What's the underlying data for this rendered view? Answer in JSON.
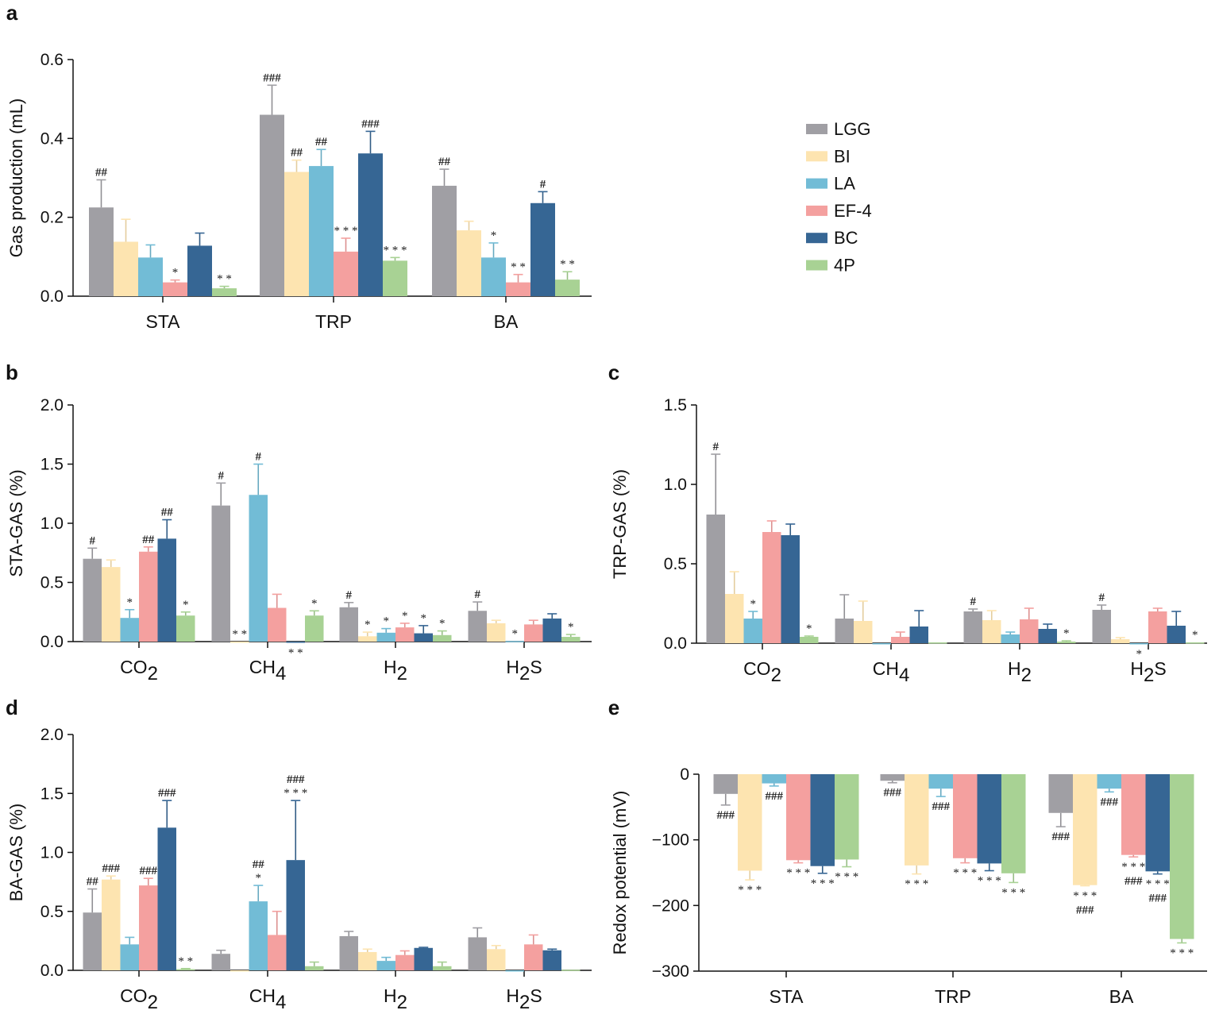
{
  "chart_data": [
    {
      "panel": "a",
      "type": "bar",
      "ylabel": "Gas production (mL)",
      "ylim": [
        0,
        0.6
      ],
      "yticks": [
        "0.0",
        "0.2",
        "0.4",
        "0.6"
      ],
      "ytick_values": [
        0,
        0.2,
        0.4,
        0.6
      ],
      "categories": [
        "STA",
        "TRP",
        "BA"
      ],
      "series": [
        {
          "name": "LGG",
          "values": [
            0.225,
            0.46,
            0.28
          ],
          "error": [
            0.07,
            0.075,
            0.042
          ],
          "annotations": [
            "##",
            "###",
            "##"
          ]
        },
        {
          "name": "BI",
          "values": [
            0.138,
            0.315,
            0.167
          ],
          "error": [
            0.057,
            0.03,
            0.023
          ],
          "annotations": [
            "",
            "##",
            ""
          ]
        },
        {
          "name": "LA",
          "values": [
            0.098,
            0.33,
            0.098
          ],
          "error": [
            0.032,
            0.042,
            0.037
          ],
          "annotations": [
            "",
            "##",
            "*"
          ]
        },
        {
          "name": "EF-4",
          "values": [
            0.035,
            0.113,
            0.035
          ],
          "error": [
            0.006,
            0.034,
            0.02
          ],
          "annotations": [
            "*",
            "***",
            "**"
          ]
        },
        {
          "name": "BC",
          "values": [
            0.128,
            0.362,
            0.236
          ],
          "error": [
            0.032,
            0.056,
            0.029
          ],
          "annotations": [
            "",
            "###",
            "#"
          ]
        },
        {
          "name": "4P",
          "values": [
            0.02,
            0.09,
            0.042
          ],
          "error": [
            0.005,
            0.008,
            0.02
          ],
          "annotations": [
            "**",
            "***",
            "**"
          ]
        }
      ]
    },
    {
      "panel": "b",
      "type": "bar",
      "ylabel": "STA-GAS (%)",
      "ylim": [
        0,
        2.0
      ],
      "yticks": [
        "0.0",
        "0.5",
        "1.0",
        "1.5",
        "2.0"
      ],
      "ytick_values": [
        0,
        0.5,
        1,
        1.5,
        2
      ],
      "categories": [
        "CO2",
        "CH4",
        "H2",
        "H2S"
      ],
      "series": [
        {
          "name": "LGG",
          "values": [
            0.7,
            1.15,
            0.29,
            0.26
          ],
          "error": [
            0.09,
            0.19,
            0.04,
            0.075
          ],
          "annotations": [
            "#",
            "#",
            "#",
            "#"
          ]
        },
        {
          "name": "BI",
          "values": [
            0.63,
            0,
            0.045,
            0.155
          ],
          "error": [
            0.06,
            0,
            0.035,
            0.025
          ],
          "annotations": [
            "",
            "**",
            "*",
            ""
          ]
        },
        {
          "name": "LA",
          "values": [
            0.2,
            1.24,
            0.075,
            0.005
          ],
          "error": [
            0.07,
            0.26,
            0.035,
            0
          ],
          "annotations": [
            "*",
            "#",
            "*",
            "*"
          ]
        },
        {
          "name": "EF-4",
          "values": [
            0.76,
            0.285,
            0.12,
            0.145
          ],
          "error": [
            0.04,
            0.115,
            0.035,
            0.035
          ],
          "annotations": [
            "##",
            "",
            "*",
            ""
          ]
        },
        {
          "name": "BC",
          "values": [
            0.87,
            -0.01,
            0.07,
            0.195
          ],
          "error": [
            0.16,
            0,
            0.065,
            0.04
          ],
          "annotations": [
            "##",
            "**",
            "*",
            ""
          ]
        },
        {
          "name": "4P",
          "values": [
            0.22,
            0.22,
            0.055,
            0.04
          ],
          "error": [
            0.03,
            0.04,
            0.035,
            0.02
          ],
          "annotations": [
            "*",
            "*",
            "*",
            "*"
          ]
        }
      ]
    },
    {
      "panel": "c",
      "type": "bar",
      "ylabel": "TRP-GAS (%)",
      "ylim": [
        0,
        1.5
      ],
      "yticks": [
        "0.0",
        "0.5",
        "1.0",
        "1.5"
      ],
      "ytick_values": [
        0,
        0.5,
        1,
        1.5
      ],
      "categories": [
        "CO2",
        "CH4",
        "H2",
        "H2S"
      ],
      "series": [
        {
          "name": "LGG",
          "values": [
            0.81,
            0.155,
            0.2,
            0.21
          ],
          "error": [
            0.38,
            0.15,
            0.015,
            0.03
          ],
          "annotations": [
            "#",
            "",
            "#",
            "#"
          ]
        },
        {
          "name": "BI",
          "values": [
            0.31,
            0.14,
            0.145,
            0.025
          ],
          "error": [
            0.14,
            0.125,
            0.06,
            0.01
          ],
          "annotations": [
            "",
            "",
            "",
            ""
          ]
        },
        {
          "name": "LA",
          "values": [
            0.155,
            -0.005,
            0.055,
            -0.005
          ],
          "error": [
            0.045,
            0,
            0.015,
            0
          ],
          "annotations": [
            "*",
            "",
            "",
            "*"
          ]
        },
        {
          "name": "EF-4",
          "values": [
            0.7,
            0.04,
            0.15,
            0.2
          ],
          "error": [
            0.07,
            0.03,
            0.07,
            0.02
          ],
          "annotations": [
            "",
            "",
            "",
            ""
          ]
        },
        {
          "name": "BC",
          "values": [
            0.68,
            0.105,
            0.09,
            0.11
          ],
          "error": [
            0.07,
            0.1,
            0.03,
            0.09
          ],
          "annotations": [
            "",
            "",
            "",
            ""
          ]
        },
        {
          "name": "4P",
          "values": [
            0.04,
            0.005,
            0.01,
            0.005
          ],
          "error": [
            0.005,
            0,
            0.005,
            0
          ],
          "annotations": [
            "*",
            "",
            "*",
            "*"
          ]
        }
      ]
    },
    {
      "panel": "d",
      "type": "bar",
      "ylabel": "BA-GAS (%)",
      "ylim": [
        0,
        2.0
      ],
      "yticks": [
        "0.0",
        "0.5",
        "1.0",
        "1.5",
        "2.0"
      ],
      "ytick_values": [
        0,
        0.5,
        1,
        1.5,
        2
      ],
      "categories": [
        "CO2",
        "CH4",
        "H2",
        "H2S"
      ],
      "series": [
        {
          "name": "LGG",
          "values": [
            0.49,
            0.14,
            0.29,
            0.28
          ],
          "error": [
            0.2,
            0.03,
            0.04,
            0.08
          ],
          "annotations": [
            "##",
            "",
            "",
            ""
          ]
        },
        {
          "name": "BI",
          "values": [
            0.77,
            0,
            0.155,
            0.18
          ],
          "error": [
            0.03,
            0,
            0.025,
            0.03
          ],
          "annotations": [
            "###",
            "",
            "",
            ""
          ]
        },
        {
          "name": "LA",
          "values": [
            0.22,
            0.585,
            0.08,
            0
          ],
          "error": [
            0.06,
            0.135,
            0.03,
            0
          ],
          "annotations": [
            "",
            "##\n*",
            "",
            ""
          ]
        },
        {
          "name": "EF-4",
          "values": [
            0.72,
            0.3,
            0.13,
            0.22
          ],
          "error": [
            0.06,
            0.2,
            0.035,
            0.08
          ],
          "annotations": [
            "###",
            "",
            "",
            ""
          ]
        },
        {
          "name": "BC",
          "values": [
            1.21,
            0.935,
            0.19,
            0.17
          ],
          "error": [
            0.23,
            0.505,
            0.005,
            0.01
          ],
          "annotations": [
            "###",
            "###\n***",
            "",
            ""
          ]
        },
        {
          "name": "4P",
          "values": [
            0.01,
            0.035,
            0.035,
            0.005
          ],
          "error": [
            0.005,
            0.035,
            0.035,
            0
          ],
          "annotations": [
            "**",
            "",
            "",
            ""
          ]
        }
      ]
    },
    {
      "panel": "e",
      "type": "bar",
      "ylabel": "Redox potential (mV)",
      "ylim": [
        -300,
        0
      ],
      "yticks": [
        "0",
        "−100",
        "−200",
        "−300"
      ],
      "ytick_values": [
        0,
        -100,
        -200,
        -300
      ],
      "categories": [
        "STA",
        "TRP",
        "BA"
      ],
      "series": [
        {
          "name": "LGG",
          "values": [
            -30,
            -10,
            -59
          ],
          "error": [
            17,
            3,
            21
          ],
          "annotations": [
            "###",
            "###",
            "###"
          ]
        },
        {
          "name": "BI",
          "values": [
            -147,
            -139,
            -169
          ],
          "error": [
            14,
            13,
            1
          ],
          "annotations": [
            "***",
            "***",
            "***\n###"
          ]
        },
        {
          "name": "LA",
          "values": [
            -14,
            -22,
            -22
          ],
          "error": [
            4,
            12,
            5
          ],
          "annotations": [
            "###",
            "###",
            "###"
          ]
        },
        {
          "name": "EF-4",
          "values": [
            -131,
            -128,
            -123
          ],
          "error": [
            4,
            7,
            3
          ],
          "annotations": [
            "***",
            "***",
            "***\n###"
          ]
        },
        {
          "name": "BC",
          "values": [
            -140,
            -136,
            -148
          ],
          "error": [
            11,
            11,
            4
          ],
          "annotations": [
            "***",
            "***",
            "***\n###"
          ]
        },
        {
          "name": "4P",
          "values": [
            -130,
            -151,
            -251
          ],
          "error": [
            11,
            14,
            6
          ],
          "annotations": [
            "***",
            "***",
            "***"
          ]
        }
      ]
    }
  ],
  "legend": {
    "placement": "top-right",
    "items": [
      {
        "name": "LGG",
        "color": "#a09fa4"
      },
      {
        "name": "BI",
        "color": "#fde4b0"
      },
      {
        "name": "LA",
        "color": "#72bcd6"
      },
      {
        "name": "EF-4",
        "color": "#f4a09f"
      },
      {
        "name": "BC",
        "color": "#366694"
      },
      {
        "name": "4P",
        "color": "#a8d294"
      }
    ]
  }
}
